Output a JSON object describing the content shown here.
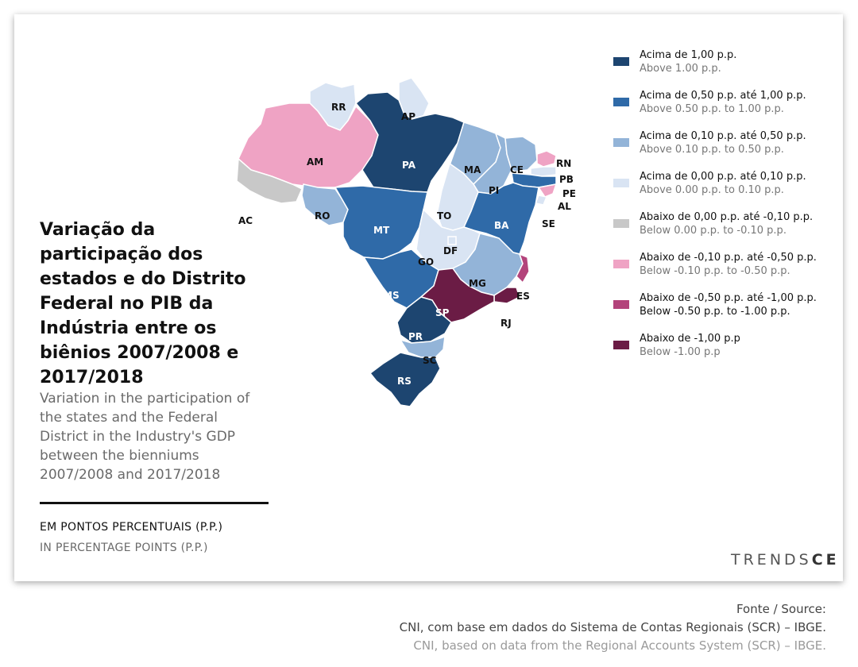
{
  "title": "Variação da participação dos estados e do Distrito Federal no PIB da Indústria entre os biênios 2007/2008 e 2017/2018",
  "subtitle": "Variation in the participation of the states and the Federal District in the Industry's GDP between the bienniums 2007/2008 and 2017/2018",
  "unit_pt": "EM PONTOS PERCENTUAIS (P.P.)",
  "unit_en": "IN PERCENTAGE POINTS (P.P.)",
  "legend": [
    {
      "pt": "Acima de 1,00 p.p.",
      "en": "Above 1.00 p.p.",
      "color": "#1d4570"
    },
    {
      "pt": "Acima de 0,50 p.p. até 1,00 p.p.",
      "en": "Above 0.50 p.p. to 1.00 p.p.",
      "color": "#2f6aa8"
    },
    {
      "pt": "Acima de 0,10 p.p. até 0,50 p.p.",
      "en": "Above 0.10 p.p. to 0.50 p.p.",
      "color": "#93b4d8"
    },
    {
      "pt": "Acima de 0,00 p.p. até 0,10 p.p.",
      "en": "Above 0.00 p.p. to 0.10 p.p.",
      "color": "#d9e4f3"
    },
    {
      "pt": "Abaixo de 0,00 p.p. até -0,10 p.p.",
      "en": "Below 0.00 p.p. to -0.10 p.p.",
      "color": "#c8c8c8"
    },
    {
      "pt": "Abaixo de -0,10 p.p. até -0,50 p.p.",
      "en": "Below -0.10 p.p. to -0.50 p.p.",
      "color": "#efa3c4"
    },
    {
      "pt": "Abaixo de -0,50 p.p. até -1,00 p.p.",
      "en": "Below -0.50 p.p. to -1.00 p.p.",
      "color": "#b3437b"
    },
    {
      "pt": "Abaixo de -1,00 p.p",
      "en": "Below -1.00 p.p",
      "color": "#6b1c45"
    }
  ],
  "states": {
    "RR": {
      "label": "RR",
      "class": 3
    },
    "AP": {
      "label": "AP",
      "class": 3
    },
    "AM": {
      "label": "AM",
      "class": 5
    },
    "PA": {
      "label": "PA",
      "class": 0
    },
    "AC": {
      "label": "AC",
      "class": 4
    },
    "RO": {
      "label": "RO",
      "class": 2
    },
    "MT": {
      "label": "MT",
      "class": 1
    },
    "MA": {
      "label": "MA",
      "class": 2
    },
    "PI": {
      "label": "PI",
      "class": 2
    },
    "CE": {
      "label": "CE",
      "class": 2
    },
    "RN": {
      "label": "RN",
      "class": 5
    },
    "PB": {
      "label": "PB",
      "class": 3
    },
    "PE": {
      "label": "PE",
      "class": 1
    },
    "AL": {
      "label": "AL",
      "class": 5
    },
    "SE": {
      "label": "SE",
      "class": 3
    },
    "TO": {
      "label": "TO",
      "class": 3
    },
    "BA": {
      "label": "BA",
      "class": 1
    },
    "GO": {
      "label": "GO",
      "class": 3
    },
    "DF": {
      "label": "DF",
      "class": 3
    },
    "MG": {
      "label": "MG",
      "class": 2
    },
    "ES": {
      "label": "ES",
      "class": 6
    },
    "RJ": {
      "label": "RJ",
      "class": 7
    },
    "MS": {
      "label": "MS",
      "class": 1
    },
    "SP": {
      "label": "SP",
      "class": 7
    },
    "PR": {
      "label": "PR",
      "class": 0
    },
    "SC": {
      "label": "SC",
      "class": 2
    },
    "RS": {
      "label": "RS",
      "class": 0
    }
  },
  "logo": {
    "text_light": "TRENDS",
    "text_bold": "CE"
  },
  "source": {
    "label": "Fonte / Source:",
    "pt": "CNI, com base em dados do Sistema de Contas Regionais (SCR) – IBGE.",
    "en": "CNI, based on data from the Regional Accounts System (SCR) – IBGE."
  }
}
